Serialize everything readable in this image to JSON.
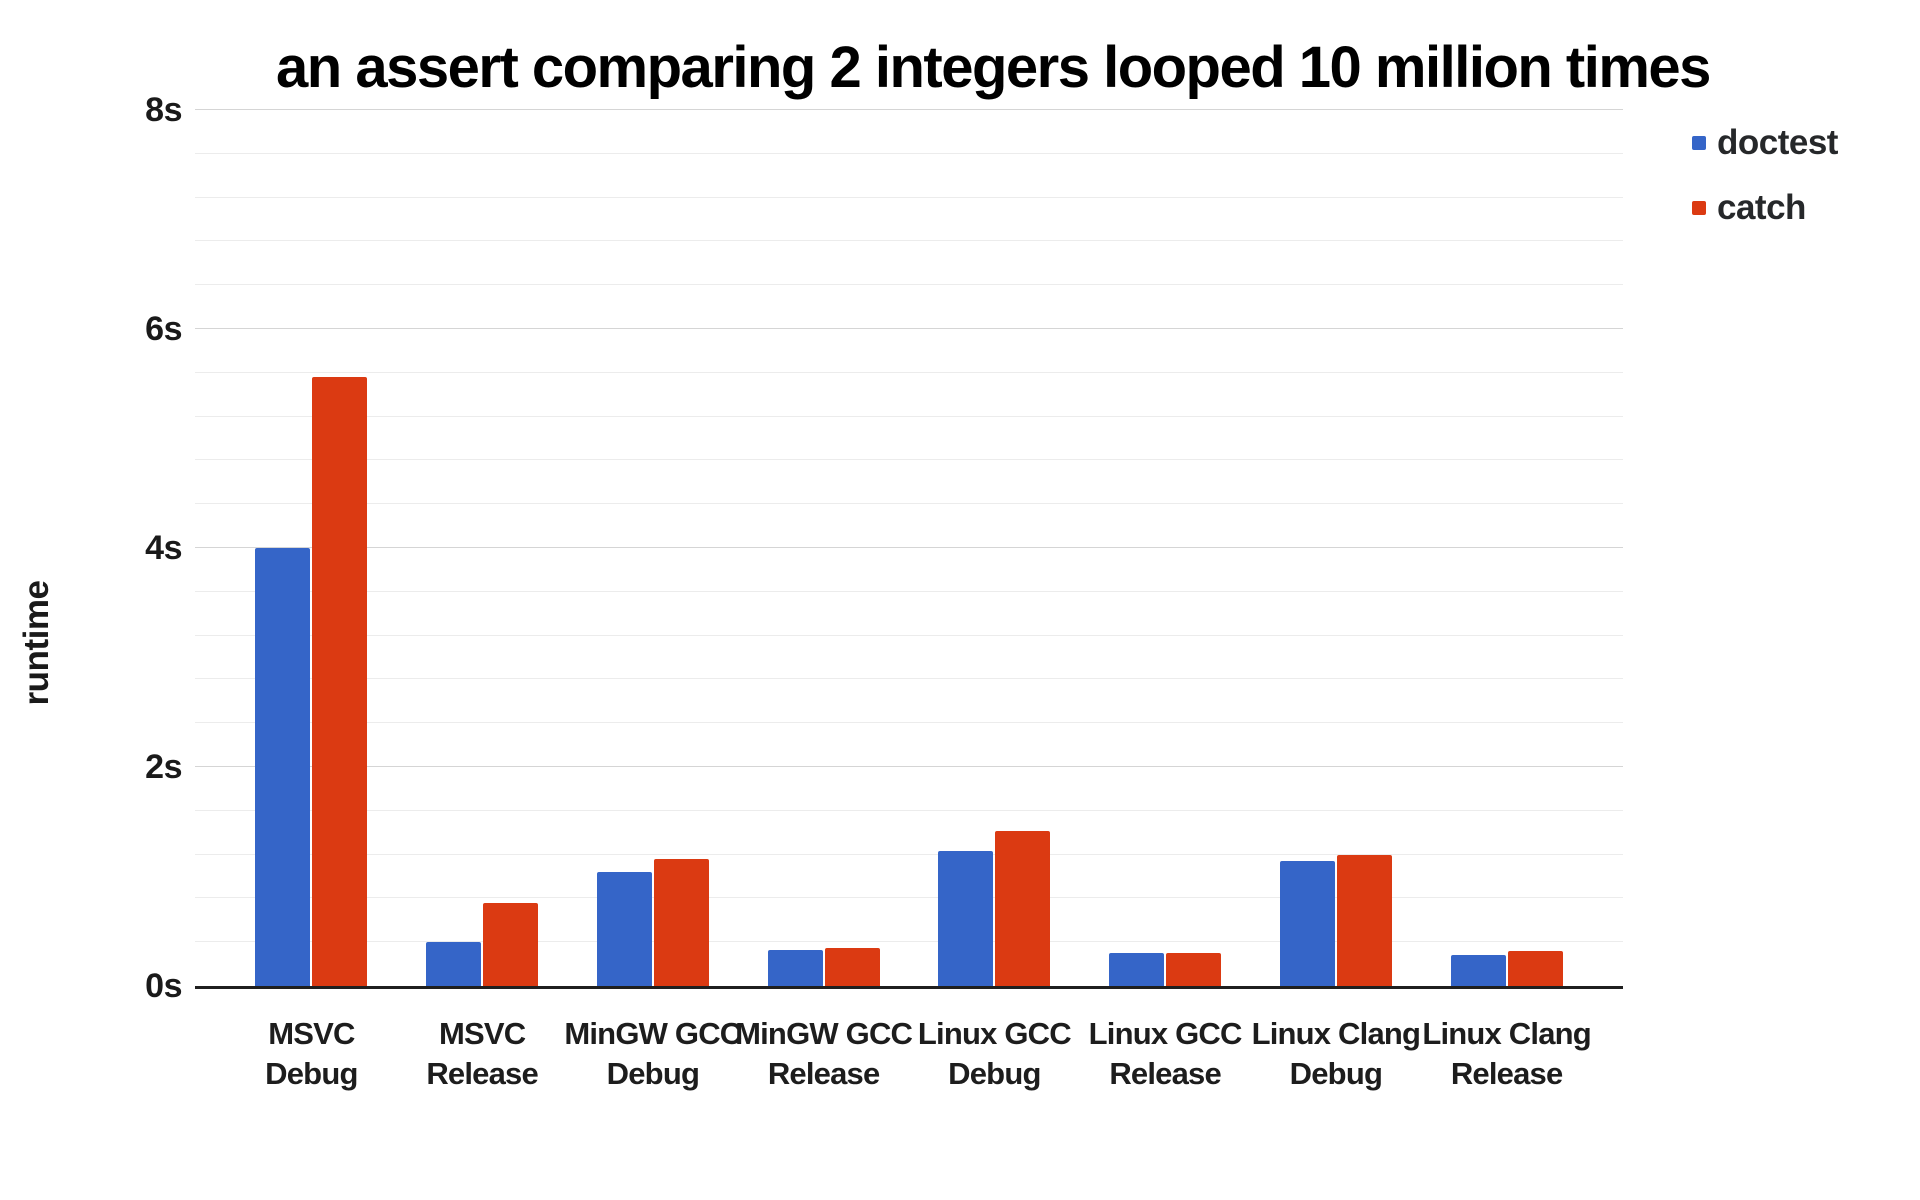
{
  "chart_data": {
    "type": "bar",
    "title": "an assert comparing 2 integers looped 10 million times",
    "xlabel": "",
    "ylabel": "runtime",
    "unit": "s",
    "ylim": [
      0,
      8
    ],
    "major_step": 2,
    "minor_step": 0.4,
    "grid": true,
    "legend_position": "top-right",
    "categories": [
      {
        "line1": "MSVC",
        "line2": "Debug"
      },
      {
        "line1": "MSVC",
        "line2": "Release"
      },
      {
        "line1": "MinGW GCC",
        "line2": "Debug"
      },
      {
        "line1": "MinGW GCC",
        "line2": "Release"
      },
      {
        "line1": "Linux GCC",
        "line2": "Debug"
      },
      {
        "line1": "Linux GCC",
        "line2": "Release"
      },
      {
        "line1": "Linux Clang",
        "line2": "Debug"
      },
      {
        "line1": "Linux Clang",
        "line2": "Release"
      }
    ],
    "series": [
      {
        "name": "doctest",
        "color": "#3565C8",
        "values": [
          4.0,
          0.4,
          1.04,
          0.33,
          1.23,
          0.3,
          1.14,
          0.28
        ]
      },
      {
        "name": "catch",
        "color": "#DB3A12",
        "values": [
          5.56,
          0.76,
          1.16,
          0.35,
          1.42,
          0.3,
          1.2,
          0.32
        ]
      }
    ],
    "yticks": [
      {
        "label": "8s",
        "value": 8
      },
      {
        "label": "6s",
        "value": 6
      },
      {
        "label": "4s",
        "value": 4
      },
      {
        "label": "2s",
        "value": 2
      },
      {
        "label": "0s",
        "value": 0
      }
    ]
  }
}
